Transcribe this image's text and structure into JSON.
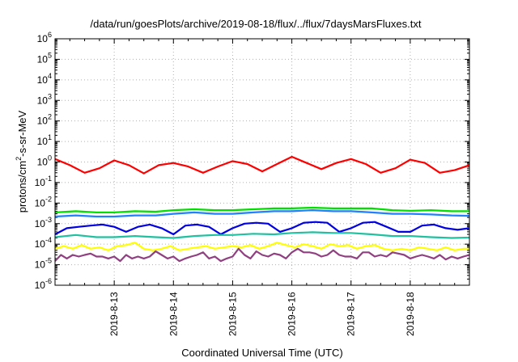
{
  "chart_data": {
    "type": "line",
    "title": "/data/run/goesPlots/archive/2019-08-18/flux/../flux/7daysMarsFluxes.txt",
    "xlabel": "Coordinated Universal Time (UTC)",
    "ylabel": "protons/cm²-s-sr-MeV",
    "ylabel_parts": {
      "pre": "protons/cm",
      "sup": "2",
      "post": "-s-sr-MeV"
    },
    "y_scale": "log",
    "ylim": [
      1e-06,
      1000000.0
    ],
    "y_tick_exponents": [
      -6,
      -5,
      -4,
      -3,
      -2,
      -1,
      0,
      1,
      2,
      3,
      4,
      5,
      6
    ],
    "y_tick_base": "10",
    "xlim": [
      "2019-08-12 00:00",
      "2019-08-19 00:00"
    ],
    "x_ticks": [
      "2019-8-13",
      "2019-8-14",
      "2019-8-15",
      "2019-8-16",
      "2019-8-17",
      "2019-8-18"
    ],
    "grid": true,
    "legend": "none",
    "series": [
      {
        "color": "#ff0000",
        "x_days": [
          0,
          0.25,
          0.5,
          0.75,
          1,
          1.25,
          1.5,
          1.75,
          2,
          2.25,
          2.5,
          2.75,
          3,
          3.25,
          3.5,
          3.75,
          4,
          4.25,
          4.5,
          4.75,
          5,
          5.25,
          5.5,
          5.75,
          6,
          6.25,
          6.5,
          6.75,
          7
        ],
        "values": [
          1.4,
          0.7,
          0.3,
          0.5,
          1.2,
          0.7,
          0.28,
          0.7,
          0.9,
          0.6,
          0.3,
          0.6,
          1.1,
          0.8,
          0.35,
          0.8,
          1.8,
          0.9,
          0.45,
          0.9,
          1.4,
          0.8,
          0.3,
          0.5,
          1.3,
          0.9,
          0.3,
          0.4,
          0.7
        ]
      },
      {
        "color": "#00e000",
        "x_days": [
          0,
          0.35,
          0.7,
          1,
          1.35,
          1.7,
          2,
          2.35,
          2.7,
          3,
          3.35,
          3.7,
          4,
          4.35,
          4.7,
          5,
          5.35,
          5.7,
          6,
          6.35,
          6.7,
          7
        ],
        "values": [
          0.0035,
          0.004,
          0.0035,
          0.0035,
          0.004,
          0.0038,
          0.0045,
          0.005,
          0.0045,
          0.0045,
          0.005,
          0.0055,
          0.0055,
          0.006,
          0.0055,
          0.0055,
          0.0055,
          0.0045,
          0.0042,
          0.0045,
          0.004,
          0.004
        ]
      },
      {
        "color": "#2080ff",
        "x_days": [
          0,
          0.35,
          0.7,
          1,
          1.35,
          1.7,
          2,
          2.35,
          2.7,
          3,
          3.35,
          3.7,
          4,
          4.35,
          4.7,
          5,
          5.35,
          5.7,
          6,
          6.35,
          6.7,
          7
        ],
        "values": [
          0.0022,
          0.0025,
          0.0022,
          0.0022,
          0.0025,
          0.0025,
          0.003,
          0.0035,
          0.003,
          0.003,
          0.0035,
          0.004,
          0.004,
          0.0045,
          0.004,
          0.004,
          0.0035,
          0.003,
          0.003,
          0.0028,
          0.0025,
          0.0024
        ]
      },
      {
        "color": "#0000e0",
        "x_days": [
          0,
          0.2,
          0.4,
          0.6,
          0.8,
          1,
          1.2,
          1.4,
          1.6,
          1.8,
          2,
          2.2,
          2.4,
          2.6,
          2.8,
          3,
          3.2,
          3.4,
          3.6,
          3.8,
          4,
          4.2,
          4.4,
          4.6,
          4.8,
          5,
          5.2,
          5.4,
          5.6,
          5.8,
          6,
          6.2,
          6.4,
          6.6,
          6.8,
          7
        ],
        "values": [
          0.0003,
          0.0006,
          0.0007,
          0.0008,
          0.0009,
          0.0007,
          0.0004,
          0.0007,
          0.0009,
          0.0006,
          0.0003,
          0.0008,
          0.0009,
          0.0007,
          0.0003,
          0.0006,
          0.001,
          0.0011,
          0.001,
          0.0004,
          0.0006,
          0.0011,
          0.0012,
          0.0011,
          0.0004,
          0.0006,
          0.0011,
          0.0012,
          0.0007,
          0.0004,
          0.0004,
          0.0008,
          0.0009,
          0.0006,
          0.0005,
          0.0006
        ]
      },
      {
        "color": "#20c0a0",
        "x_days": [
          0,
          0.35,
          0.7,
          1,
          1.35,
          1.7,
          2,
          2.35,
          2.7,
          3,
          3.35,
          3.7,
          4,
          4.35,
          4.7,
          5,
          5.35,
          5.7,
          6,
          6.35,
          6.7,
          7
        ],
        "values": [
          0.00022,
          0.00028,
          0.00022,
          0.00022,
          0.00025,
          0.00022,
          0.0002,
          0.00025,
          0.00028,
          0.00028,
          0.00032,
          0.0003,
          0.00035,
          0.00038,
          0.00035,
          0.00035,
          0.0003,
          0.00025,
          0.00025,
          0.00022,
          0.0002,
          0.00021
        ]
      },
      {
        "color": "#ffff00",
        "x_days": [
          0,
          0.15,
          0.3,
          0.45,
          0.6,
          0.75,
          0.9,
          1.05,
          1.2,
          1.35,
          1.5,
          1.65,
          1.8,
          1.95,
          2.1,
          2.25,
          2.4,
          2.55,
          2.7,
          2.85,
          3,
          3.15,
          3.3,
          3.45,
          3.6,
          3.75,
          3.9,
          4.05,
          4.2,
          4.35,
          4.5,
          4.65,
          4.8,
          4.95,
          5.1,
          5.25,
          5.4,
          5.55,
          5.7,
          5.85,
          6,
          6.15,
          6.3,
          6.45,
          6.6,
          6.75,
          6.9,
          7
        ],
        "values": [
          6e-05,
          8e-05,
          6e-05,
          9e-05,
          6e-05,
          7e-05,
          5e-05,
          8e-05,
          9e-05,
          0.00012,
          6e-05,
          5e-05,
          6e-05,
          8e-05,
          5e-05,
          6e-05,
          7e-05,
          8e-05,
          6e-05,
          7e-05,
          8e-05,
          7e-05,
          9e-05,
          6e-05,
          8e-05,
          0.00012,
          9e-05,
          7e-05,
          0.0001,
          8e-05,
          6e-05,
          0.0001,
          8e-05,
          9e-05,
          6e-05,
          8e-05,
          9e-05,
          6e-05,
          5e-05,
          6e-05,
          5e-05,
          7e-05,
          6e-05,
          5e-05,
          7e-05,
          5e-05,
          6e-05,
          6e-05
        ]
      },
      {
        "color": "#904080",
        "x_days": [
          0,
          0.1,
          0.2,
          0.3,
          0.4,
          0.5,
          0.6,
          0.7,
          0.8,
          0.9,
          1,
          1.1,
          1.2,
          1.3,
          1.4,
          1.5,
          1.6,
          1.7,
          1.8,
          1.9,
          2,
          2.1,
          2.2,
          2.3,
          2.4,
          2.5,
          2.6,
          2.7,
          2.8,
          2.9,
          3,
          3.1,
          3.2,
          3.3,
          3.4,
          3.5,
          3.6,
          3.7,
          3.8,
          3.9,
          4,
          4.1,
          4.2,
          4.3,
          4.4,
          4.5,
          4.6,
          4.7,
          4.8,
          4.9,
          5,
          5.1,
          5.2,
          5.3,
          5.4,
          5.5,
          5.6,
          5.7,
          5.8,
          5.9,
          6,
          6.1,
          6.2,
          6.3,
          6.4,
          6.5,
          6.6,
          6.7,
          6.8,
          6.9,
          7
        ],
        "values": [
          1.5e-05,
          3e-05,
          2e-05,
          3e-05,
          2.5e-05,
          3e-05,
          3.5e-05,
          2.5e-05,
          2.5e-05,
          2e-05,
          2.5e-05,
          1.5e-05,
          3e-05,
          2e-05,
          2.5e-05,
          2e-05,
          2.5e-05,
          4.5e-05,
          3e-05,
          2e-05,
          2.5e-05,
          1.5e-05,
          2e-05,
          2.5e-05,
          3e-05,
          4e-05,
          2e-05,
          2.5e-05,
          1.5e-05,
          2e-05,
          2.5e-05,
          6e-05,
          3e-05,
          2e-05,
          4.5e-05,
          3e-05,
          2.5e-05,
          3.5e-05,
          3e-05,
          2e-05,
          4e-05,
          6e-05,
          4e-05,
          4e-05,
          3.5e-05,
          2.5e-05,
          3e-05,
          5e-05,
          3e-05,
          2.5e-05,
          2.5e-05,
          2e-05,
          4e-05,
          4e-05,
          2.5e-05,
          3e-05,
          2.5e-05,
          4e-05,
          3.5e-05,
          3e-05,
          2e-05,
          2.5e-05,
          3e-05,
          2.5e-05,
          2e-05,
          3e-05,
          1.8e-05,
          2.5e-05,
          2e-05,
          2.5e-05,
          3e-05
        ]
      }
    ]
  }
}
